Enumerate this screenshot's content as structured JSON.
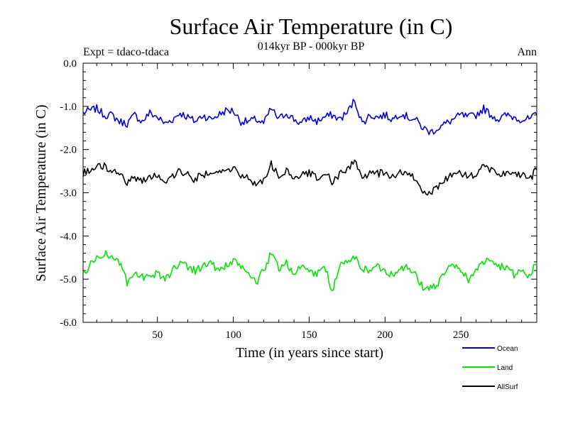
{
  "chart_data": {
    "type": "line",
    "title": "Surface Air Temperature (in C)",
    "subtitle": "014kyr BP - 000kyr BP",
    "left_label": "Expt = tdaco-tdaca",
    "right_label": "Ann",
    "xlabel": "Time (in years since start)",
    "ylabel": "Surface Air Temperature (in C)",
    "xlim": [
      1,
      300
    ],
    "ylim": [
      -6.0,
      0.0
    ],
    "x_ticks": [
      50,
      100,
      150,
      200,
      250
    ],
    "x_tick_labels": [
      "50",
      "100",
      "150",
      "200",
      "250"
    ],
    "y_ticks": [
      0.0,
      -1.0,
      -2.0,
      -3.0,
      -4.0,
      -5.0,
      -6.0
    ],
    "y_tick_labels": [
      "0.0",
      "-1.0",
      "-2.0",
      "-3.0",
      "-4.0",
      "-5.0",
      "-6.0"
    ],
    "legend_position": "bottom-right",
    "series": [
      {
        "name": "Ocean",
        "color": "#0000dd",
        "anchors": {
          "x": [
            1,
            5,
            10,
            15,
            20,
            25,
            30,
            35,
            40,
            45,
            50,
            55,
            60,
            65,
            70,
            75,
            80,
            85,
            90,
            95,
            100,
            105,
            110,
            115,
            120,
            125,
            130,
            135,
            140,
            145,
            150,
            155,
            160,
            165,
            170,
            175,
            180,
            185,
            190,
            195,
            200,
            205,
            210,
            215,
            220,
            225,
            230,
            235,
            240,
            245,
            250,
            255,
            260,
            265,
            270,
            275,
            280,
            285,
            290,
            295,
            300
          ],
          "y": [
            -1.15,
            -1.1,
            -1.05,
            -1.2,
            -1.2,
            -1.35,
            -1.4,
            -1.2,
            -1.35,
            -1.15,
            -1.25,
            -1.4,
            -1.3,
            -1.15,
            -1.25,
            -1.35,
            -1.2,
            -1.3,
            -1.2,
            -1.1,
            -1.1,
            -1.35,
            -1.35,
            -1.3,
            -1.4,
            -1.05,
            -1.3,
            -1.15,
            -1.3,
            -1.4,
            -1.25,
            -1.35,
            -1.25,
            -1.2,
            -1.3,
            -1.15,
            -0.85,
            -1.4,
            -1.2,
            -1.25,
            -1.2,
            -1.3,
            -1.15,
            -1.25,
            -1.3,
            -1.5,
            -1.6,
            -1.5,
            -1.4,
            -1.3,
            -1.2,
            -1.25,
            -1.2,
            -1.05,
            -1.2,
            -1.3,
            -1.2,
            -1.25,
            -1.3,
            -1.3,
            -1.2
          ]
        }
      },
      {
        "name": "Land",
        "color": "#00e600",
        "anchors": {
          "x": [
            1,
            5,
            10,
            15,
            20,
            25,
            30,
            35,
            40,
            45,
            50,
            55,
            60,
            65,
            70,
            75,
            80,
            85,
            90,
            95,
            100,
            105,
            110,
            115,
            120,
            125,
            130,
            135,
            140,
            145,
            150,
            155,
            160,
            165,
            170,
            175,
            180,
            185,
            190,
            195,
            200,
            205,
            210,
            215,
            220,
            225,
            230,
            235,
            240,
            245,
            250,
            255,
            260,
            265,
            270,
            275,
            280,
            285,
            290,
            295,
            300
          ],
          "y": [
            -4.9,
            -4.7,
            -4.5,
            -4.4,
            -4.5,
            -4.6,
            -5.1,
            -4.9,
            -4.95,
            -5.0,
            -4.85,
            -5.0,
            -4.8,
            -4.6,
            -4.7,
            -4.8,
            -4.7,
            -4.6,
            -4.8,
            -4.7,
            -4.6,
            -4.7,
            -4.85,
            -5.1,
            -4.8,
            -4.4,
            -4.75,
            -4.6,
            -4.9,
            -4.7,
            -4.8,
            -4.9,
            -4.65,
            -5.3,
            -4.7,
            -4.6,
            -4.5,
            -4.75,
            -4.8,
            -4.7,
            -4.8,
            -4.9,
            -4.7,
            -4.75,
            -4.9,
            -5.2,
            -5.2,
            -5.1,
            -4.8,
            -4.7,
            -4.8,
            -5.0,
            -4.8,
            -4.6,
            -4.5,
            -4.7,
            -4.7,
            -4.9,
            -4.8,
            -4.95,
            -4.6
          ]
        }
      },
      {
        "name": "AllSurf",
        "color": "#000000",
        "anchors": {
          "x": [
            1,
            5,
            10,
            15,
            20,
            25,
            30,
            35,
            40,
            45,
            50,
            55,
            60,
            65,
            70,
            75,
            80,
            85,
            90,
            95,
            100,
            105,
            110,
            115,
            120,
            125,
            130,
            135,
            140,
            145,
            150,
            155,
            160,
            165,
            170,
            175,
            180,
            185,
            190,
            195,
            200,
            205,
            210,
            215,
            220,
            225,
            230,
            235,
            240,
            245,
            250,
            255,
            260,
            265,
            270,
            275,
            280,
            285,
            290,
            295,
            300
          ],
          "y": [
            -2.55,
            -2.5,
            -2.4,
            -2.4,
            -2.45,
            -2.6,
            -2.75,
            -2.65,
            -2.7,
            -2.65,
            -2.6,
            -2.75,
            -2.6,
            -2.5,
            -2.6,
            -2.7,
            -2.55,
            -2.6,
            -2.55,
            -2.45,
            -2.45,
            -2.6,
            -2.65,
            -2.8,
            -2.7,
            -2.35,
            -2.6,
            -2.5,
            -2.7,
            -2.6,
            -2.55,
            -2.65,
            -2.5,
            -2.75,
            -2.6,
            -2.45,
            -2.25,
            -2.7,
            -2.55,
            -2.55,
            -2.55,
            -2.65,
            -2.5,
            -2.6,
            -2.65,
            -2.95,
            -3.0,
            -2.85,
            -2.7,
            -2.55,
            -2.55,
            -2.65,
            -2.55,
            -2.4,
            -2.5,
            -2.6,
            -2.5,
            -2.6,
            -2.6,
            -2.7,
            -2.45
          ]
        }
      }
    ]
  }
}
